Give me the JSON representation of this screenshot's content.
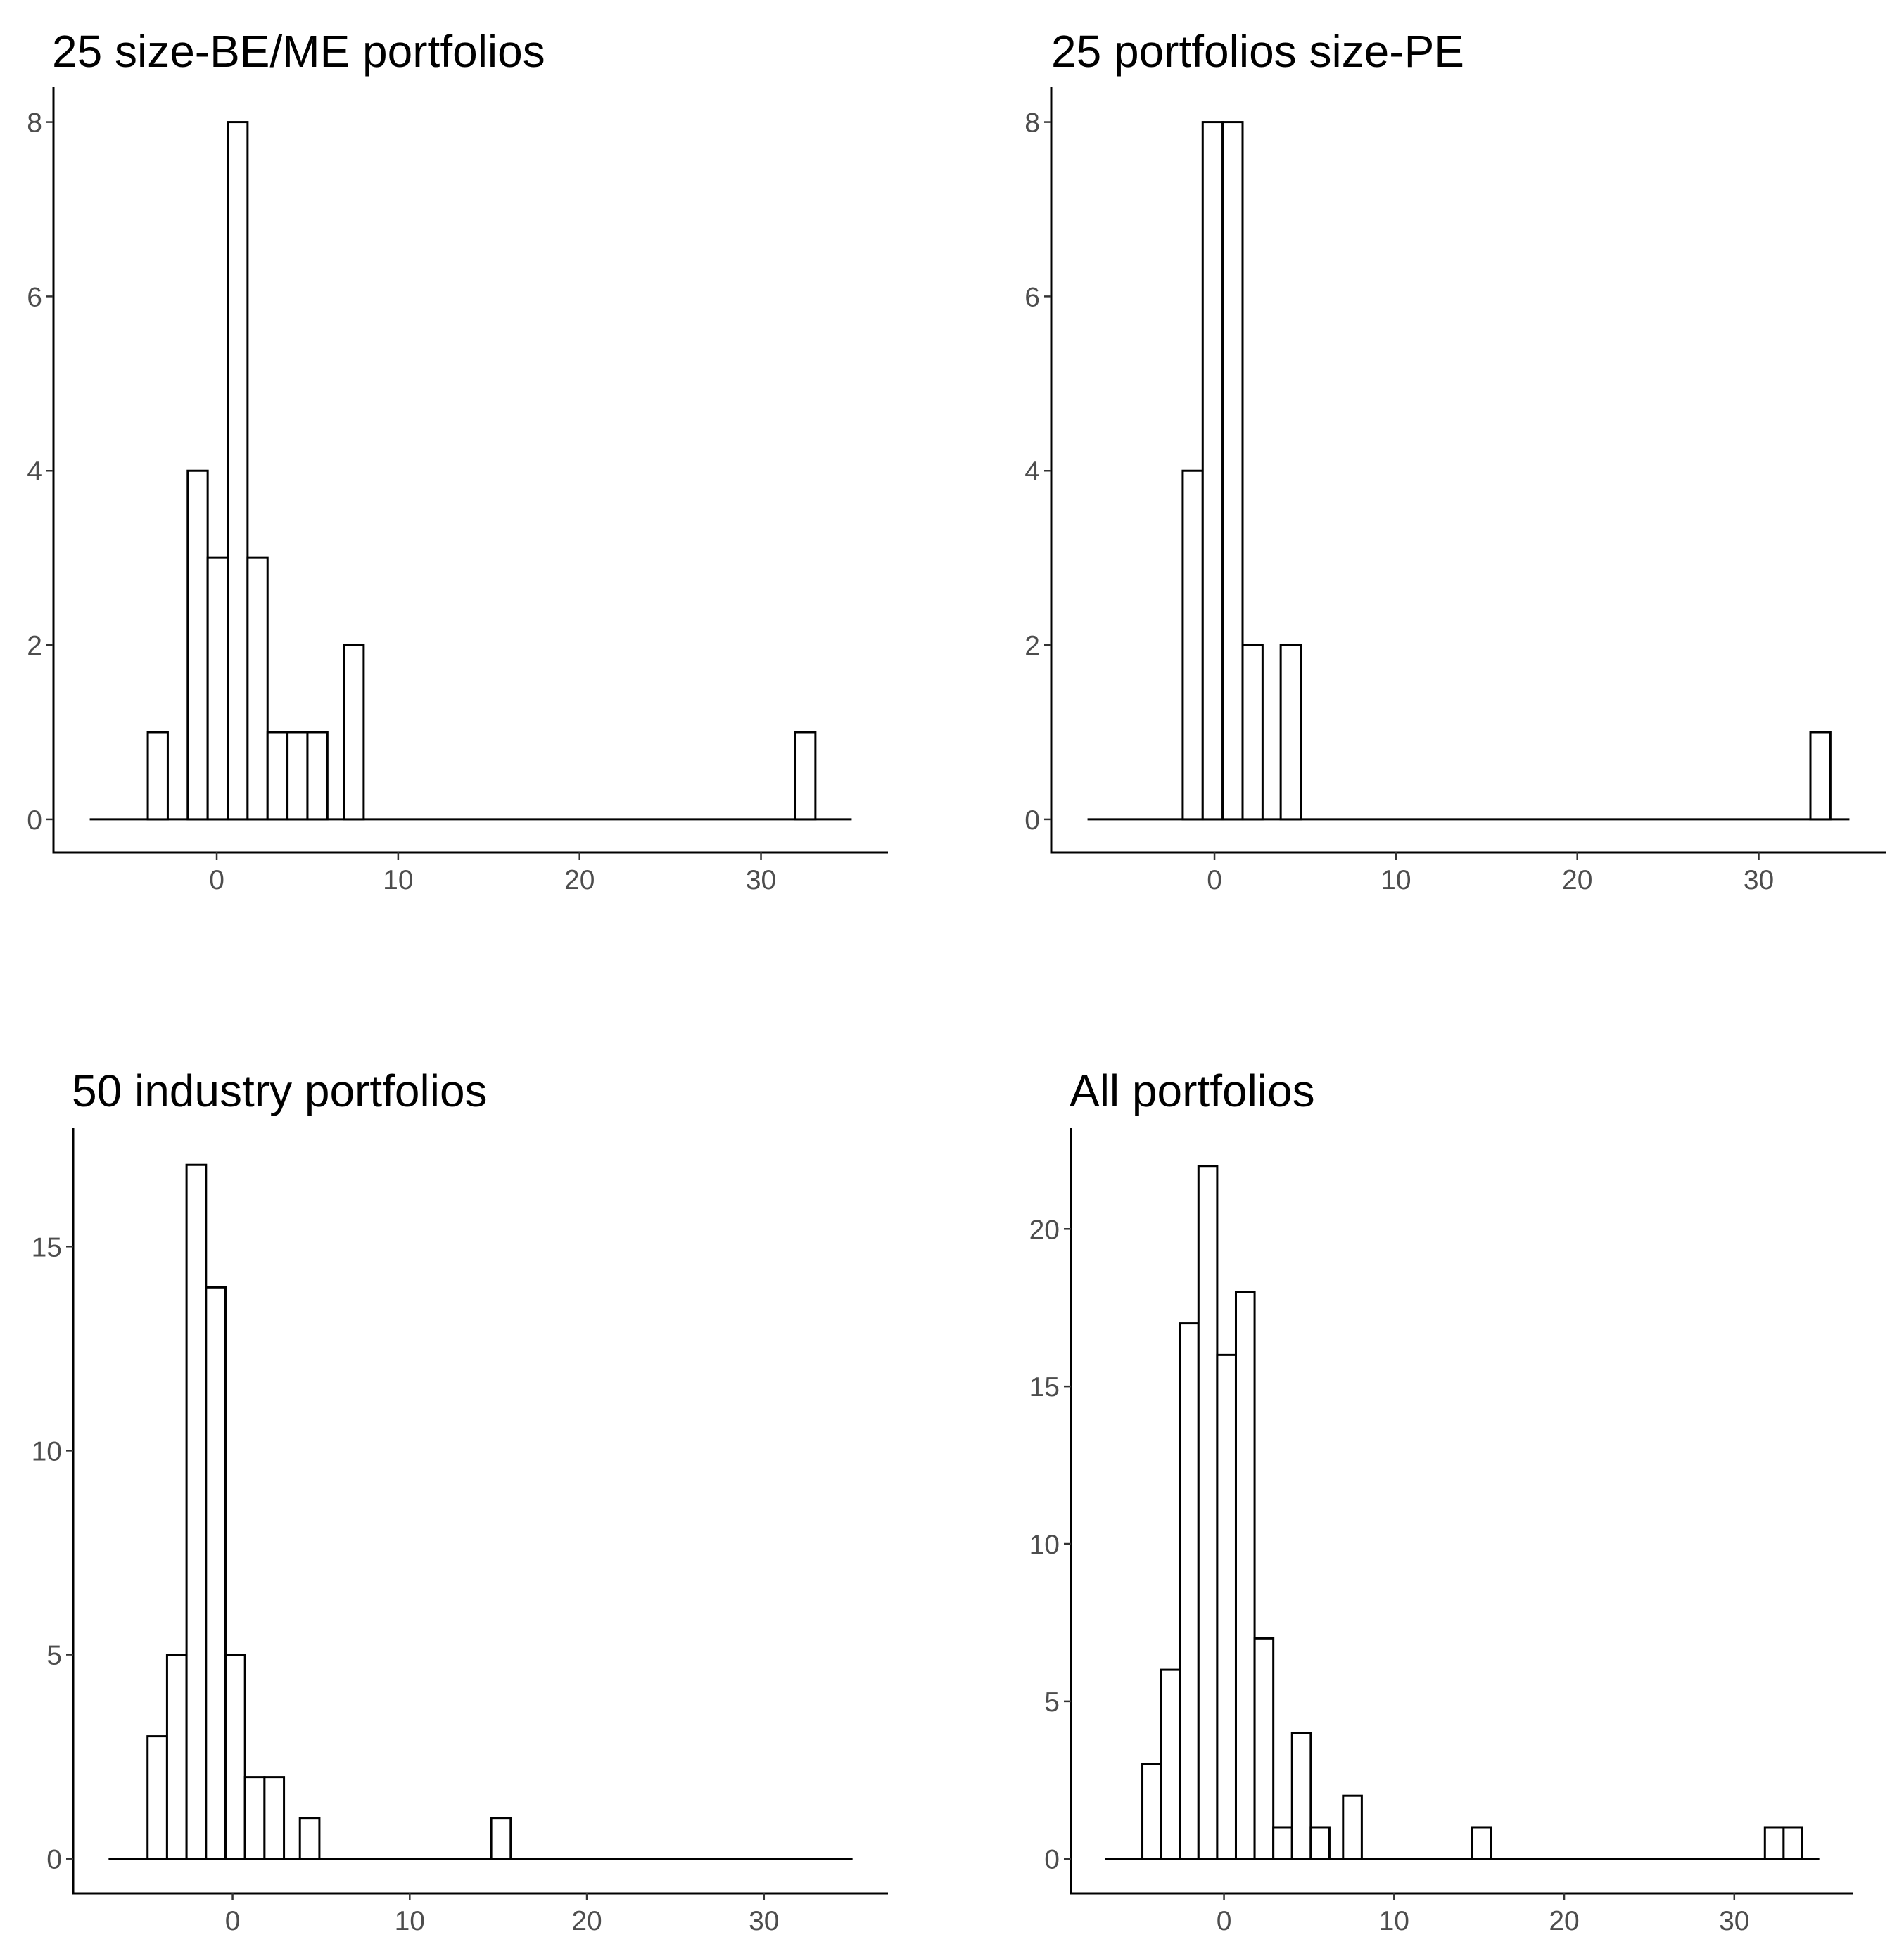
{
  "chart_data": [
    {
      "type": "bar",
      "title": "25 size-BE/ME portfolios",
      "xlabel": "",
      "ylabel": "",
      "xlim": [
        -9,
        37
      ],
      "ylim": [
        -0.38,
        8.4
      ],
      "xticks": [
        0,
        10,
        20,
        30
      ],
      "yticks": [
        0,
        2,
        4,
        6,
        8
      ],
      "baseline_range": [
        -7,
        35
      ],
      "bin_width": 1.1,
      "bins": [
        {
          "x": -3.25,
          "count": 1
        },
        {
          "x": -1.05,
          "count": 4
        },
        {
          "x": 0.05,
          "count": 3
        },
        {
          "x": 1.15,
          "count": 8
        },
        {
          "x": 2.25,
          "count": 3
        },
        {
          "x": 3.35,
          "count": 1
        },
        {
          "x": 4.45,
          "count": 1
        },
        {
          "x": 5.55,
          "count": 1
        },
        {
          "x": 7.55,
          "count": 2
        },
        {
          "x": 32.45,
          "count": 1
        }
      ]
    },
    {
      "type": "bar",
      "title": "25 portfolios size-PE",
      "xlabel": "",
      "ylabel": "",
      "xlim": [
        -9,
        37
      ],
      "ylim": [
        -0.38,
        8.4
      ],
      "xticks": [
        0,
        10,
        20,
        30
      ],
      "yticks": [
        0,
        2,
        4,
        6,
        8
      ],
      "baseline_range": [
        -7,
        35
      ],
      "bin_width": 1.1,
      "bins": [
        {
          "x": -1.2,
          "count": 4
        },
        {
          "x": -0.1,
          "count": 8
        },
        {
          "x": 1.0,
          "count": 8
        },
        {
          "x": 2.1,
          "count": 2
        },
        {
          "x": 4.2,
          "count": 2
        },
        {
          "x": 33.4,
          "count": 1
        }
      ]
    },
    {
      "type": "bar",
      "title": "50 industry portfolios",
      "xlabel": "",
      "ylabel": "",
      "xlim": [
        -9,
        37
      ],
      "ylim": [
        -0.85,
        17.9
      ],
      "xticks": [
        0,
        10,
        20,
        30
      ],
      "yticks": [
        0,
        5,
        10,
        15
      ],
      "baseline_range": [
        -7,
        35
      ],
      "bin_width": 1.1,
      "bins": [
        {
          "x": -4.25,
          "count": 3
        },
        {
          "x": -3.15,
          "count": 5
        },
        {
          "x": -2.05,
          "count": 17
        },
        {
          "x": -0.95,
          "count": 14
        },
        {
          "x": 0.15,
          "count": 5
        },
        {
          "x": 1.25,
          "count": 2
        },
        {
          "x": 2.35,
          "count": 2
        },
        {
          "x": 4.35,
          "count": 1
        },
        {
          "x": 15.15,
          "count": 1
        }
      ]
    },
    {
      "type": "bar",
      "title": "All portfolios",
      "xlabel": "",
      "ylabel": "",
      "xlim": [
        -9,
        37
      ],
      "ylim": [
        -1.1,
        23.2
      ],
      "xticks": [
        0,
        10,
        20,
        30
      ],
      "yticks": [
        0,
        5,
        10,
        15,
        20
      ],
      "baseline_range": [
        -7,
        35
      ],
      "bin_width": 1.1,
      "bins": [
        {
          "x": -4.25,
          "count": 3
        },
        {
          "x": -3.15,
          "count": 6
        },
        {
          "x": -2.05,
          "count": 17
        },
        {
          "x": -0.95,
          "count": 22
        },
        {
          "x": 0.15,
          "count": 16
        },
        {
          "x": 1.25,
          "count": 18
        },
        {
          "x": 2.35,
          "count": 7
        },
        {
          "x": 3.45,
          "count": 1
        },
        {
          "x": 4.55,
          "count": 4
        },
        {
          "x": 5.65,
          "count": 1
        },
        {
          "x": 7.55,
          "count": 2
        },
        {
          "x": 15.15,
          "count": 1
        },
        {
          "x": 32.35,
          "count": 1
        },
        {
          "x": 33.45,
          "count": 1
        }
      ]
    }
  ]
}
